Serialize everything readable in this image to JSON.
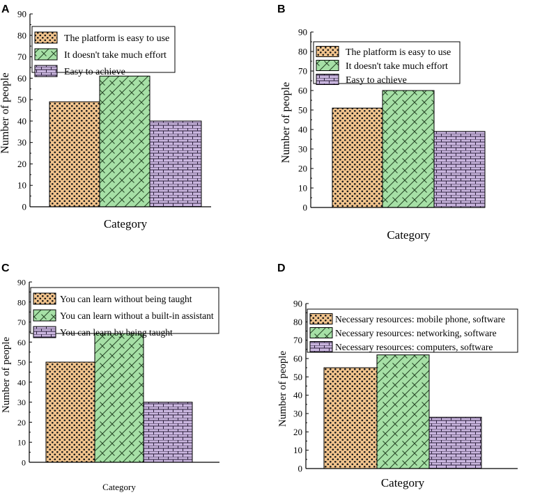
{
  "colors": {
    "fill_1": "#f2c48d",
    "dot_1": "#1a1a1a",
    "fill_2": "#a6e0a6",
    "line_2": "#2a4a2a",
    "fill_3": "#c9b5de",
    "line_3": "#2a1e3a",
    "axis": "#000000"
  },
  "chart_data": [
    {
      "panel": "A",
      "type": "bar",
      "title": "",
      "xlabel": "Category",
      "ylabel": "Number of people",
      "ylim": [
        0,
        90
      ],
      "yticks": [
        "0",
        "10",
        "20",
        "30",
        "40",
        "50",
        "60",
        "70",
        "80",
        "90"
      ],
      "series": [
        {
          "name": "The platform is easy to use",
          "value": 49
        },
        {
          "name": "It doesn't take much effort",
          "value": 61
        },
        {
          "name": "Easy to achieve",
          "value": 40
        }
      ]
    },
    {
      "panel": "B",
      "type": "bar",
      "title": "",
      "xlabel": "Category",
      "ylabel": "Number of people",
      "ylim": [
        0,
        90
      ],
      "yticks": [
        "0",
        "10",
        "20",
        "30",
        "40",
        "50",
        "60",
        "70",
        "80",
        "90"
      ],
      "series": [
        {
          "name": "The platform is easy to use",
          "value": 51
        },
        {
          "name": "It doesn't take much effort",
          "value": 60
        },
        {
          "name": "Easy to achieve",
          "value": 39
        }
      ]
    },
    {
      "panel": "C",
      "type": "bar",
      "title": "",
      "xlabel": "Category",
      "ylabel": "Number of people",
      "ylim": [
        0,
        90
      ],
      "yticks": [
        "0",
        "10",
        "20",
        "30",
        "40",
        "50",
        "60",
        "70",
        "80",
        "90"
      ],
      "series": [
        {
          "name": "You can learn without being taught",
          "value": 50
        },
        {
          "name": "You can learn without a built-in assistant",
          "value": 65
        },
        {
          "name": "You can learn by being taught",
          "value": 30
        }
      ]
    },
    {
      "panel": "D",
      "type": "bar",
      "title": "",
      "xlabel": "Category",
      "ylabel": "Number of people",
      "ylim": [
        0,
        90
      ],
      "yticks": [
        "0",
        "10",
        "20",
        "30",
        "40",
        "50",
        "60",
        "70",
        "80",
        "90"
      ],
      "series": [
        {
          "name": "Necessary resources: mobile phone, software",
          "value": 55
        },
        {
          "name": "Necessary resources: networking, software",
          "value": 62
        },
        {
          "name": "Necessary resources: computers, software",
          "value": 28
        }
      ]
    }
  ]
}
